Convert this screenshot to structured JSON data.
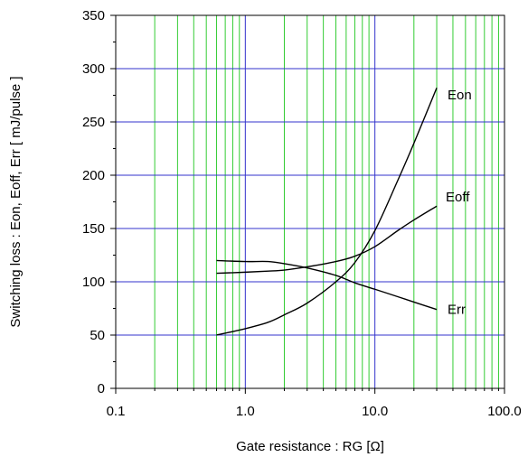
{
  "chart_data": {
    "type": "line",
    "title": "",
    "xlabel": "Gate resistance : RG [Ω]",
    "ylabel": "Switching loss  :  Eon, Eoff, Err  [ mJ/pulse ]",
    "xscale": "log",
    "xlim": [
      0.1,
      100
    ],
    "ylim": [
      0,
      350
    ],
    "x_ticks": [
      0.1,
      1,
      10,
      100
    ],
    "x_tick_labels": [
      "0.1",
      "1.0",
      "10.0",
      "100.0"
    ],
    "y_ticks": [
      0,
      50,
      100,
      150,
      200,
      250,
      300,
      350
    ],
    "y_tick_labels": [
      "0",
      "50",
      "100",
      "150",
      "200",
      "250",
      "300",
      "350"
    ],
    "grid": true,
    "colors": {
      "minor_grid": "#33cc33",
      "major_grid": "#3333cc",
      "line": "#000000",
      "frame": "#000000"
    },
    "series": [
      {
        "name": "Eon",
        "x": [
          0.6,
          1.0,
          1.5,
          2.0,
          3.0,
          5.0,
          7.0,
          10.0,
          15.0,
          20.0,
          30.0
        ],
        "y": [
          50,
          56,
          62,
          69,
          80,
          100,
          118,
          148,
          195,
          230,
          282
        ]
      },
      {
        "name": "Eoff",
        "x": [
          0.6,
          1.0,
          1.5,
          2.0,
          3.0,
          5.0,
          7.0,
          10.0,
          15.0,
          20.0,
          30.0
        ],
        "y": [
          108,
          109,
          110,
          111,
          114,
          119,
          124,
          133,
          148,
          158,
          171
        ]
      },
      {
        "name": "Err",
        "x": [
          0.6,
          1.0,
          1.5,
          2.0,
          3.0,
          5.0,
          7.0,
          10.0,
          15.0,
          20.0,
          30.0
        ],
        "y": [
          120,
          119,
          119,
          117,
          113,
          106,
          99,
          93,
          86,
          81,
          74
        ]
      }
    ]
  }
}
